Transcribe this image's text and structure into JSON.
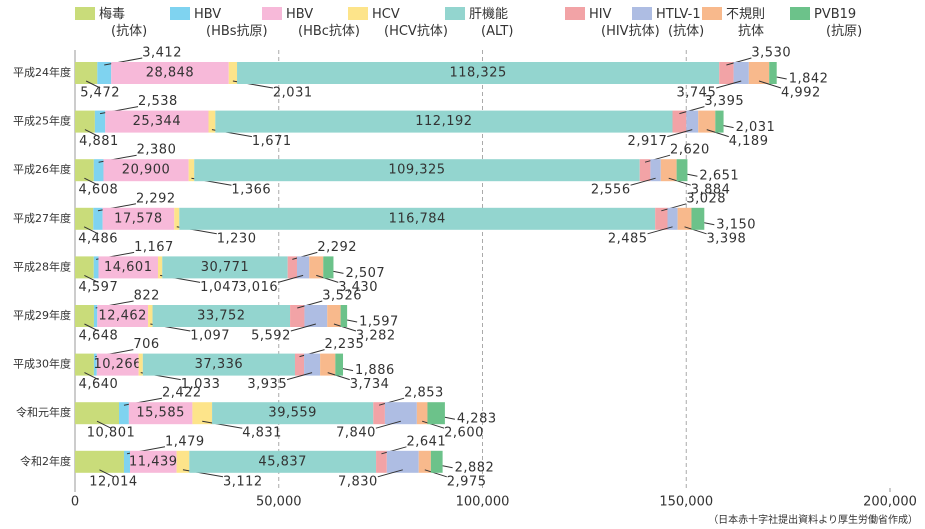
{
  "chart_data": {
    "type": "bar",
    "orientation": "horizontal",
    "stacked": true,
    "categories": [
      "平成24年度",
      "平成25年度",
      "平成26年度",
      "平成27年度",
      "平成28年度",
      "平成29年度",
      "平成30年度",
      "令和元年度",
      "令和2年度"
    ],
    "series": [
      {
        "name": "梅毒\n(抗体)",
        "color": "#c9dc7a",
        "values": [
          5472,
          4881,
          4608,
          4486,
          4597,
          4648,
          4640,
          10801,
          12014
        ],
        "value_labels": [
          "5,472",
          "4,881",
          "4,608",
          "4,486",
          "4,597",
          "4,648",
          "4,640",
          "10,801",
          "12,014"
        ]
      },
      {
        "name": "HBV\n(HBs抗原)",
        "color": "#7fd3f0",
        "values": [
          3412,
          2538,
          2380,
          2292,
          1167,
          822,
          706,
          2422,
          1479
        ],
        "value_labels": [
          "3,412",
          "2,538",
          "2,380",
          "2,292",
          "1,167",
          "822",
          "706",
          "2,422",
          "1,479"
        ]
      },
      {
        "name": "HBV\n(HBc抗体)",
        "color": "#f7b9d9",
        "values": [
          28848,
          25344,
          20900,
          17578,
          14601,
          12462,
          10266,
          15585,
          11439
        ],
        "value_labels": [
          "28,848",
          "25,344",
          "20,900",
          "17,578",
          "14,601",
          "12,462",
          "10,266",
          "15,585",
          "11,439"
        ]
      },
      {
        "name": "HCV\n(HCV抗体)",
        "color": "#fde48a",
        "values": [
          2031,
          1671,
          1366,
          1230,
          1047,
          1097,
          1033,
          4831,
          3112
        ],
        "value_labels": [
          "2,031",
          "1,671",
          "1,366",
          "1,230",
          "1,047",
          "1,097",
          "1,033",
          "4,831",
          "3,112"
        ]
      },
      {
        "name": "肝機能\n(ALT)",
        "color": "#93d5cf",
        "values": [
          118325,
          112192,
          109325,
          116784,
          30771,
          33752,
          37336,
          39559,
          45837
        ],
        "value_labels": [
          "118,325",
          "112,192",
          "109,325",
          "116,784",
          "30,771",
          "33,752",
          "37,336",
          "39,559",
          "45,837"
        ]
      },
      {
        "name": "HIV\n(HIV抗体)",
        "color": "#f2a3a6",
        "values": [
          3530,
          3395,
          2620,
          3028,
          2292,
          3526,
          2235,
          2853,
          2641
        ],
        "value_labels": [
          "3,530",
          "3,395",
          "2,620",
          "3,028",
          "2,292",
          "3,526",
          "2,235",
          "2,853",
          "2,641"
        ]
      },
      {
        "name": "HTLV-1\n(抗体)",
        "color": "#aebde3",
        "values": [
          3745,
          2917,
          2556,
          2485,
          3016,
          5592,
          3935,
          7840,
          7830
        ],
        "value_labels": [
          "3,745",
          "2,917",
          "2,556",
          "2,485",
          "3,016",
          "5,592",
          "3,935",
          "7,840",
          "7,830"
        ]
      },
      {
        "name": "不規則\n抗体",
        "color": "#f8b98c",
        "values": [
          4992,
          4189,
          3884,
          3398,
          3430,
          3282,
          3734,
          2600,
          2975
        ],
        "value_labels": [
          "4,992",
          "4,189",
          "3,884",
          "3,398",
          "3,430",
          "3,282",
          "3,734",
          "2,600",
          "2,975"
        ]
      },
      {
        "name": "PVB19\n(抗原)",
        "color": "#6cc28a",
        "values": [
          1842,
          2031,
          2651,
          3150,
          2507,
          1597,
          1886,
          4283,
          2882
        ],
        "value_labels": [
          "1,842",
          "2,031",
          "2,651",
          "3,150",
          "2,507",
          "1,597",
          "1,886",
          "4,283",
          "2,882"
        ]
      }
    ],
    "xlim": [
      0,
      200000
    ],
    "xticks": [
      0,
      {
        "value": 50000,
        "label": "50,000"
      },
      {
        "value": 100000,
        "label": "100,000"
      },
      {
        "value": 150000,
        "label": "150,000"
      },
      {
        "value": 200000,
        "label": "200,000"
      }
    ],
    "grid": true,
    "note": "（日本赤十字社提出資料より厚生労働省作成）"
  }
}
